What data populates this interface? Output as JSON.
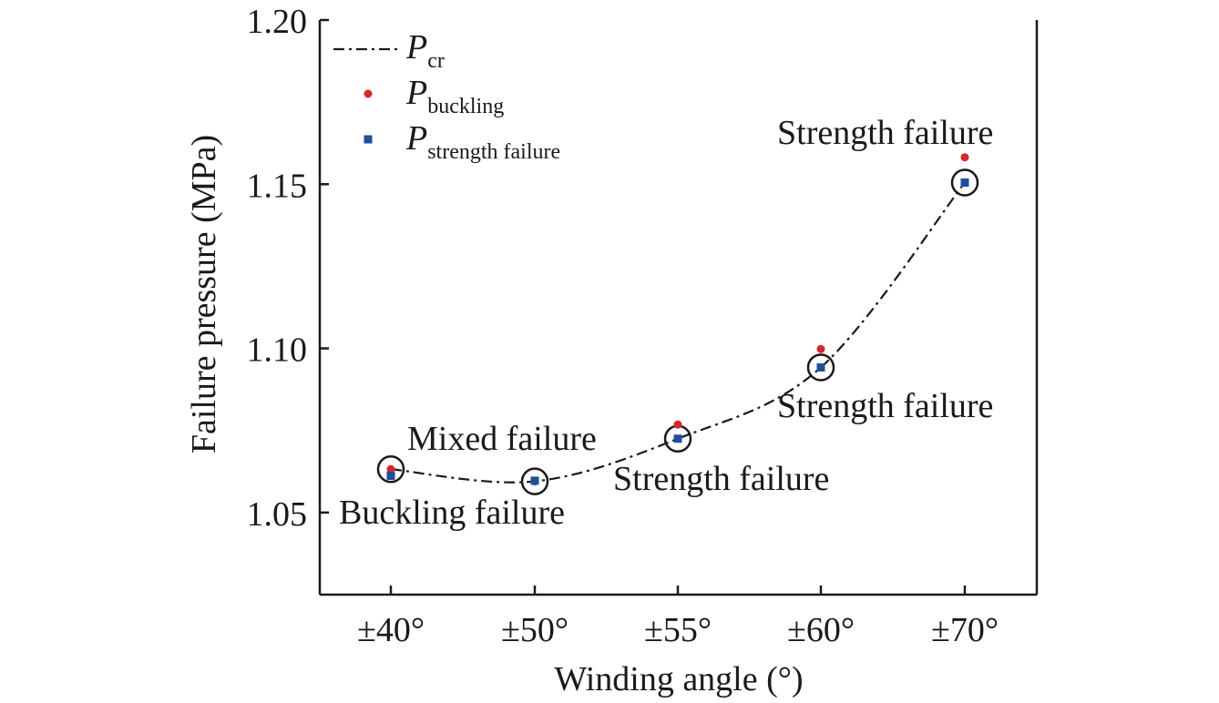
{
  "chart_data": {
    "type": "scatter",
    "xlabel": "Winding angle (°)",
    "ylabel": "Failure pressure (MPa)",
    "categories": [
      "±40°",
      "±50°",
      "±55°",
      "±60°",
      "±70°"
    ],
    "ylim": [
      1.025,
      1.2
    ],
    "yticks": [
      "1.05",
      "1.10",
      "1.15",
      "1.20"
    ],
    "ytick_values": [
      1.05,
      1.1,
      1.15,
      1.2
    ],
    "grid": false,
    "legend_position": "top-left",
    "series": [
      {
        "name_main": "P",
        "name_sub": "cr",
        "marker": "line-dashdot",
        "color": "#1a1a1a",
        "values": [
          1.0632,
          1.0595,
          1.0725,
          1.0942,
          1.1505
        ]
      },
      {
        "name_main": "P",
        "name_sub": "buckling",
        "marker": "circle",
        "color": "#d62728",
        "values": [
          1.0632,
          1.0595,
          1.0768,
          1.0998,
          1.1582
        ]
      },
      {
        "name_main": "P",
        "name_sub": "strength failure",
        "marker": "square",
        "color": "#1f4e9c",
        "values": [
          1.0612,
          1.0597,
          1.0725,
          1.0942,
          1.1505
        ]
      }
    ],
    "critical_circles": [
      1.0632,
      1.0595,
      1.0725,
      1.0942,
      1.1505
    ],
    "annotations": [
      {
        "text": "Buckling failure",
        "category": 0
      },
      {
        "text": "Mixed failure",
        "category": 1
      },
      {
        "text": "Strength failure",
        "category": 2
      },
      {
        "text": "Strength failure",
        "category": 3
      },
      {
        "text": "Strength failure",
        "category": 4
      }
    ]
  }
}
